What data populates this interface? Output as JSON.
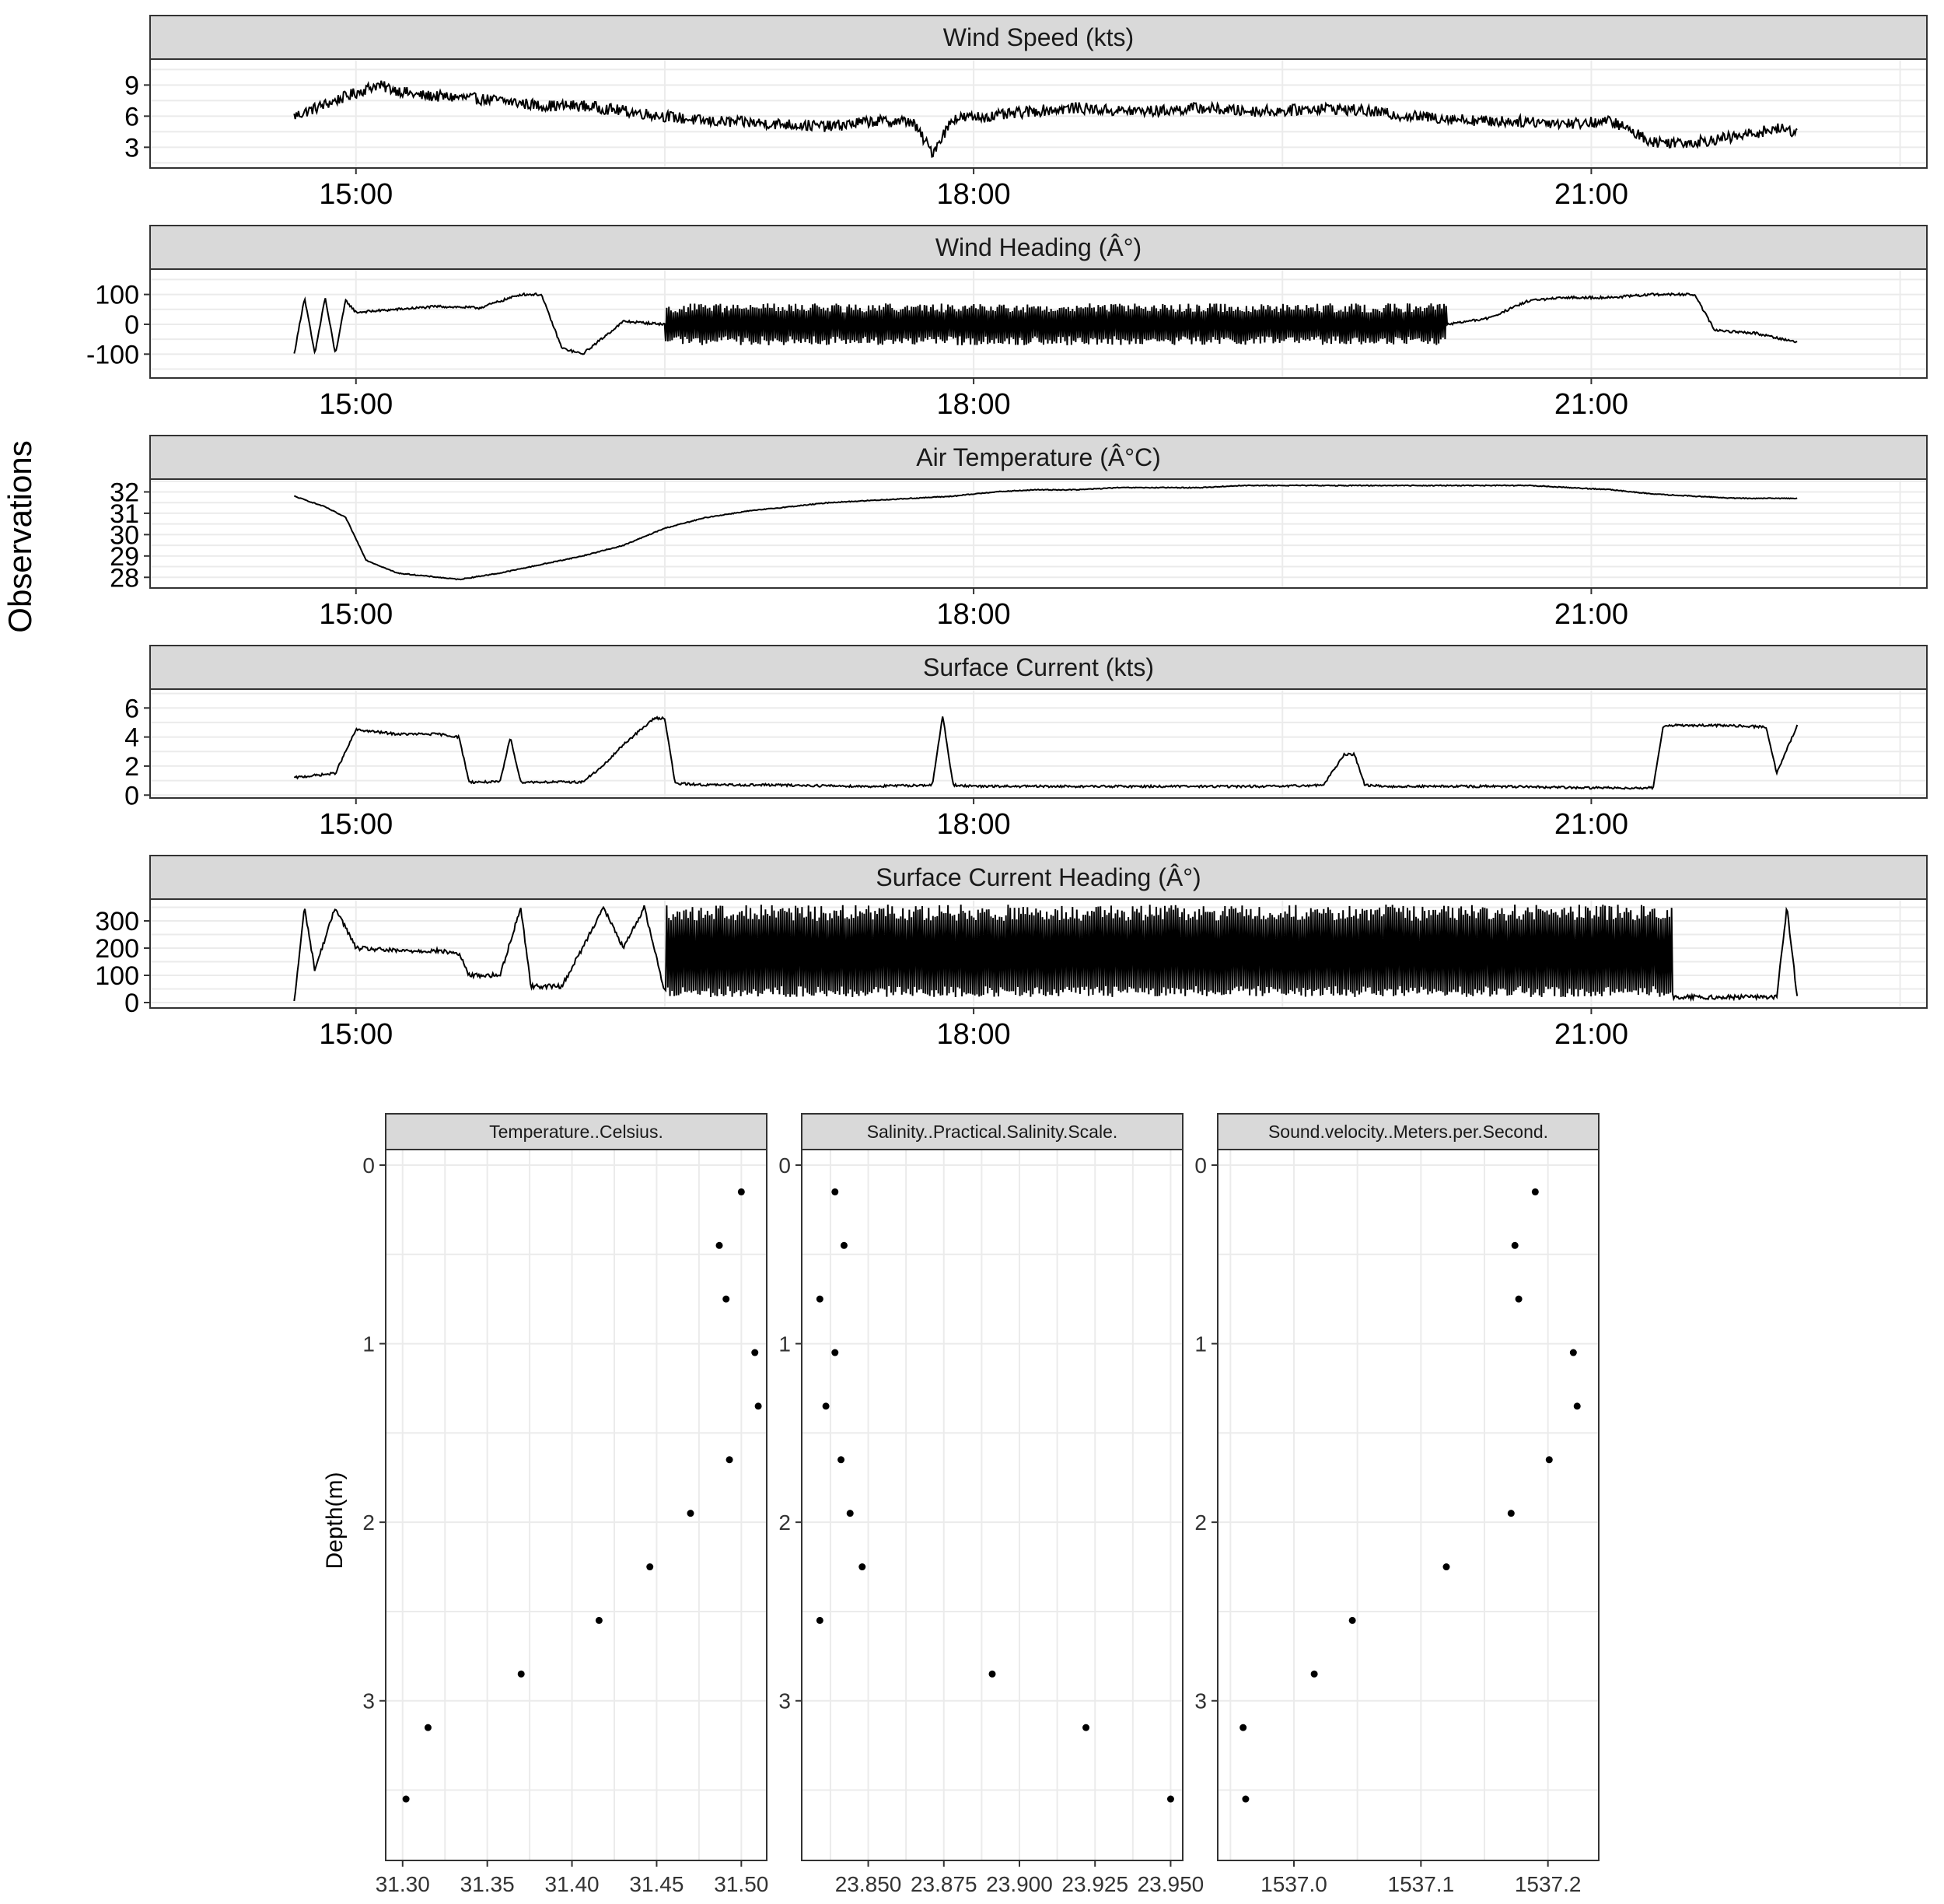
{
  "figure": {
    "top_ylabel": "Observations",
    "top_xlabel": "",
    "bottom_ylabel": "Depth(m)"
  },
  "chart_data": [
    {
      "type": "line",
      "title": "Wind Speed (kts)",
      "x_ticks": [
        "15:00",
        "18:00",
        "21:00"
      ],
      "y_ticks": [
        "9",
        "6",
        "3"
      ],
      "ylim": [
        1,
        11.5
      ],
      "series": [
        {
          "x": [
            14.7,
            14.9,
            15.1,
            15.3,
            15.5,
            15.7,
            15.9,
            16.1,
            16.3,
            16.5,
            16.7,
            16.9,
            17.1,
            17.3,
            17.5,
            17.7,
            17.8,
            17.9,
            18.1,
            18.3,
            18.5,
            18.7,
            18.9,
            19.1,
            19.3,
            19.5,
            19.7,
            19.9,
            20.1,
            20.3,
            20.5,
            20.7,
            20.9,
            21.1,
            21.3,
            21.5,
            21.7,
            21.9,
            22.0
          ],
          "y": [
            6.0,
            7.5,
            9.0,
            8.0,
            7.8,
            7.5,
            7.0,
            7.0,
            6.5,
            6.0,
            5.5,
            5.4,
            5.2,
            5.0,
            5.5,
            5.5,
            2.5,
            5.8,
            6.0,
            6.5,
            6.8,
            6.5,
            6.5,
            6.8,
            6.5,
            6.5,
            6.8,
            6.5,
            6.0,
            5.8,
            5.5,
            5.5,
            5.3,
            5.5,
            3.5,
            3.5,
            4.0,
            4.8,
            4.5
          ]
        }
      ]
    },
    {
      "type": "line",
      "title": "Wind Heading (Â°)",
      "x_ticks": [
        "15:00",
        "18:00",
        "21:00"
      ],
      "y_ticks": [
        "100",
        "0",
        "-100"
      ],
      "ylim": [
        -180,
        185
      ],
      "series": [
        {
          "x": [
            14.7,
            14.75,
            14.8,
            14.85,
            14.9,
            14.95,
            15.0,
            15.2,
            15.4,
            15.6,
            15.8,
            15.9,
            16.0,
            16.1,
            16.3,
            16.5,
            16.7,
            16.9,
            17.1,
            17.3,
            17.5,
            17.7,
            17.9,
            18.1,
            18.3,
            18.5,
            18.7,
            18.9,
            19.1,
            19.3,
            19.5,
            19.7,
            19.9,
            20.1,
            20.3,
            20.5,
            20.7,
            20.9,
            21.1,
            21.3,
            21.5,
            21.6,
            21.8,
            22.0
          ],
          "y": [
            -100,
            90,
            -100,
            90,
            -100,
            80,
            40,
            50,
            60,
            55,
            100,
            100,
            -80,
            -100,
            10,
            0,
            10,
            0,
            -10,
            0,
            0,
            -10,
            0,
            0,
            0,
            0,
            0,
            0,
            0,
            0,
            0,
            0,
            0,
            0,
            0,
            20,
            80,
            90,
            90,
            100,
            100,
            -20,
            -30,
            -60
          ]
        }
      ]
    },
    {
      "type": "line",
      "title": "Air Temperature (Â°C)",
      "x_ticks": [
        "15:00",
        "18:00",
        "21:00"
      ],
      "y_ticks": [
        "32",
        "31",
        "30",
        "29",
        "28"
      ],
      "ylim": [
        27.5,
        32.6
      ],
      "series": [
        {
          "x": [
            14.7,
            14.85,
            14.95,
            15.05,
            15.2,
            15.3,
            15.5,
            15.7,
            15.9,
            16.1,
            16.3,
            16.5,
            16.7,
            16.9,
            17.1,
            17.3,
            17.5,
            17.7,
            17.9,
            18.1,
            18.3,
            18.5,
            18.7,
            18.9,
            19.1,
            19.3,
            19.5,
            19.7,
            19.9,
            20.1,
            20.3,
            20.5,
            20.7,
            20.9,
            21.1,
            21.3,
            21.5,
            21.7,
            21.9,
            22.0
          ],
          "y": [
            31.8,
            31.3,
            30.8,
            28.8,
            28.2,
            28.1,
            27.9,
            28.2,
            28.6,
            29.0,
            29.5,
            30.3,
            30.8,
            31.1,
            31.3,
            31.5,
            31.6,
            31.7,
            31.8,
            32.0,
            32.1,
            32.1,
            32.2,
            32.2,
            32.2,
            32.3,
            32.3,
            32.3,
            32.3,
            32.3,
            32.3,
            32.3,
            32.3,
            32.2,
            32.1,
            31.9,
            31.8,
            31.7,
            31.7,
            31.7
          ]
        }
      ]
    },
    {
      "type": "line",
      "title": "Surface Current (kts)",
      "x_ticks": [
        "15:00",
        "18:00",
        "21:00"
      ],
      "y_ticks": [
        "6",
        "4",
        "2",
        "0"
      ],
      "ylim": [
        -0.2,
        7.3
      ],
      "series": [
        {
          "x": [
            14.7,
            14.9,
            14.95,
            15.0,
            15.2,
            15.4,
            15.5,
            15.55,
            15.7,
            15.75,
            15.8,
            15.9,
            16.1,
            16.2,
            16.3,
            16.45,
            16.5,
            16.55,
            16.7,
            17.0,
            17.5,
            17.8,
            17.85,
            17.9,
            18.0,
            18.5,
            19.0,
            19.5,
            19.7,
            19.8,
            19.85,
            19.9,
            20.0,
            20.5,
            21.0,
            21.3,
            21.35,
            21.4,
            21.6,
            21.85,
            21.9,
            22.0
          ],
          "y": [
            1.2,
            1.5,
            3.0,
            4.5,
            4.2,
            4.2,
            4.0,
            0.9,
            0.9,
            4.0,
            0.9,
            0.9,
            0.9,
            2.0,
            3.5,
            5.3,
            5.3,
            0.8,
            0.7,
            0.7,
            0.6,
            0.7,
            5.5,
            0.7,
            0.6,
            0.6,
            0.6,
            0.6,
            0.7,
            2.8,
            2.8,
            0.7,
            0.6,
            0.6,
            0.5,
            0.5,
            4.8,
            4.8,
            4.8,
            4.7,
            1.5,
            4.8
          ]
        }
      ]
    },
    {
      "type": "line",
      "title": "Surface Current Heading (Â°)",
      "x_ticks": [
        "15:00",
        "18:00",
        "21:00"
      ],
      "y_ticks": [
        "300",
        "200",
        "100",
        "0"
      ],
      "ylim": [
        -20,
        380
      ],
      "series": [
        {
          "x": [
            14.7,
            14.75,
            14.8,
            14.9,
            15.0,
            15.2,
            15.4,
            15.5,
            15.55,
            15.7,
            15.8,
            15.85,
            16.0,
            16.1,
            16.2,
            16.3,
            16.4,
            16.5,
            16.6,
            16.8,
            17.0,
            17.2,
            17.4,
            17.6,
            17.8,
            18.0,
            18.2,
            18.4,
            18.6,
            18.8,
            19.0,
            19.2,
            19.4,
            19.6,
            19.8,
            20.0,
            20.2,
            20.4,
            20.6,
            20.8,
            21.0,
            21.2,
            21.35,
            21.4,
            21.6,
            21.9,
            21.95,
            22.0
          ],
          "y": [
            0,
            350,
            120,
            350,
            200,
            190,
            190,
            180,
            100,
            100,
            350,
            60,
            60,
            200,
            350,
            200,
            350,
            40,
            350,
            20,
            350,
            20,
            350,
            20,
            350,
            20,
            350,
            20,
            350,
            20,
            350,
            20,
            350,
            20,
            350,
            20,
            350,
            20,
            350,
            20,
            350,
            20,
            350,
            20,
            20,
            20,
            350,
            20
          ]
        }
      ]
    },
    {
      "type": "scatter",
      "title": "Temperature..Celsius.",
      "xlabel": "",
      "ylabel": "Depth(m)",
      "x_ticks": [
        "31.30",
        "31.35",
        "31.40",
        "31.45",
        "31.50"
      ],
      "y_ticks": [
        "0",
        "1",
        "2",
        "3"
      ],
      "xlim": [
        31.29,
        31.515
      ],
      "ylim": [
        0,
        3.75
      ],
      "x": [
        31.5,
        31.487,
        31.491,
        31.508,
        31.51,
        31.493,
        31.47,
        31.446,
        31.416,
        31.37,
        31.315,
        31.302
      ],
      "y": [
        0.15,
        0.45,
        0.75,
        1.05,
        1.35,
        1.65,
        1.95,
        2.25,
        2.55,
        2.85,
        3.15,
        3.55
      ]
    },
    {
      "type": "scatter",
      "title": "Salinity..Practical.Salinity.Scale.",
      "xlabel": "",
      "ylabel": "",
      "x_ticks": [
        "23.850",
        "23.875",
        "23.900",
        "23.925",
        "23.950"
      ],
      "y_ticks": [
        "0",
        "1",
        "2",
        "3"
      ],
      "xlim": [
        23.828,
        23.954
      ],
      "ylim": [
        0,
        3.75
      ],
      "x": [
        23.839,
        23.842,
        23.834,
        23.839,
        23.836,
        23.841,
        23.844,
        23.848,
        23.834,
        23.891,
        23.922,
        23.95
      ],
      "y": [
        0.15,
        0.45,
        0.75,
        1.05,
        1.35,
        1.65,
        1.95,
        2.25,
        2.55,
        2.85,
        3.15,
        3.55
      ]
    },
    {
      "type": "scatter",
      "title": "Sound.velocity..Meters.per.Second.",
      "xlabel": "",
      "ylabel": "",
      "x_ticks": [
        "1537.0",
        "1537.1",
        "1537.2"
      ],
      "y_ticks": [
        "0",
        "1",
        "2",
        "3"
      ],
      "xlim": [
        1536.94,
        1537.24
      ],
      "ylim": [
        0,
        3.75
      ],
      "x": [
        1537.19,
        1537.174,
        1537.177,
        1537.22,
        1537.223,
        1537.201,
        1537.171,
        1537.12,
        1537.046,
        1537.016,
        1536.96,
        1536.962
      ],
      "y": [
        0.15,
        0.45,
        0.75,
        1.05,
        1.35,
        1.65,
        1.95,
        2.25,
        2.55,
        2.85,
        3.15,
        3.55
      ]
    }
  ]
}
